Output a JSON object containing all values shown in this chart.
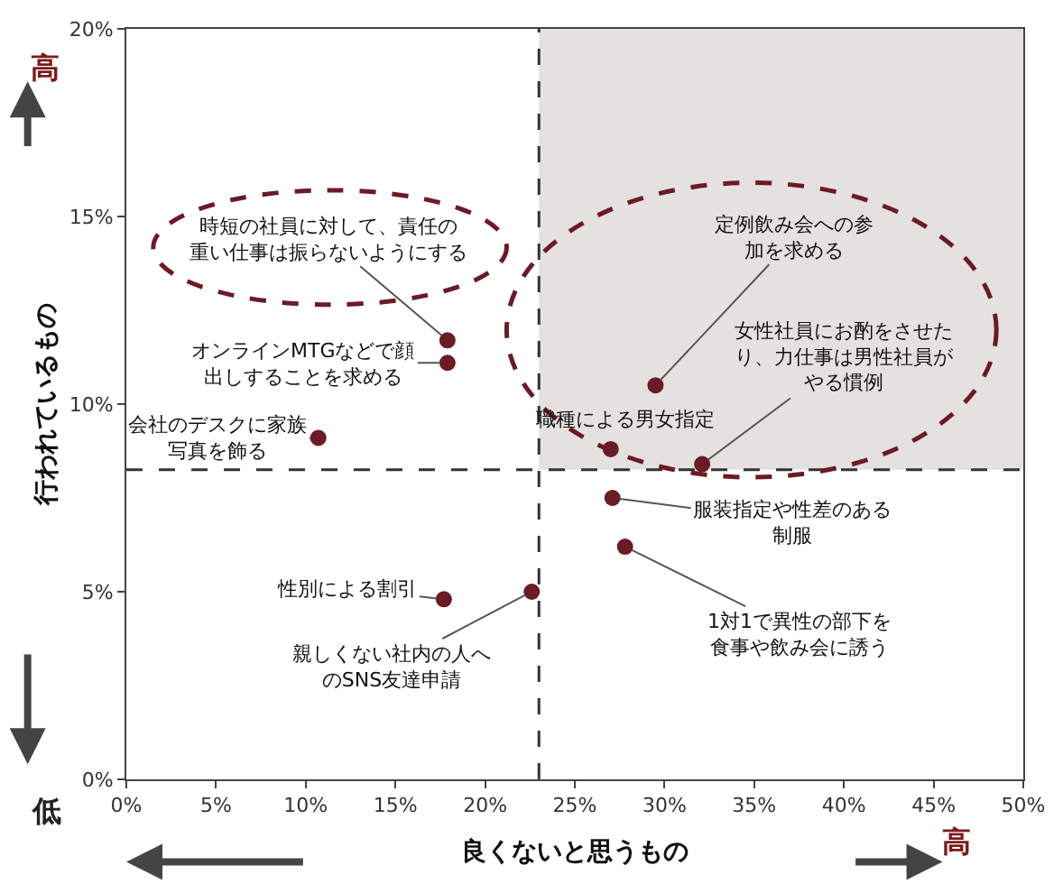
{
  "chart_data": {
    "type": "scatter",
    "xlabel": "良くないと思うもの",
    "ylabel": "行われているもの",
    "series": [
      {
        "color": "#6b1b24",
        "x": [
          17.9,
          17.9,
          10.7,
          17.7,
          22.6,
          29.5,
          27.0,
          32.1,
          27.1,
          27.8
        ],
        "values": [
          11.7,
          11.1,
          9.1,
          4.8,
          5.0,
          10.5,
          8.8,
          8.4,
          7.5,
          6.2
        ]
      }
    ],
    "annotations": [
      {
        "text": "時短の社員に対して、責任の重い仕事は振らないようにする",
        "x": 17.9,
        "y": 11.7
      },
      {
        "text": "オンラインMTGなどで顔出しすることを求める",
        "x": 17.9,
        "y": 11.1
      },
      {
        "text": "会社のデスクに家族写真を飾る",
        "x": 10.7,
        "y": 9.1
      },
      {
        "text": "性別による割引",
        "x": 17.7,
        "y": 4.8
      },
      {
        "text": "親しくない社内の人へのSNS友達申請",
        "x": 22.6,
        "y": 5.0
      },
      {
        "text": "定例飲み会への参加を求める",
        "x": 29.5,
        "y": 10.5
      },
      {
        "text": "職種による男女指定",
        "x": 27.0,
        "y": 8.8
      },
      {
        "text": "女性社員にお酌をさせたり、力仕事は男性社員がやる慣例",
        "x": 32.1,
        "y": 8.4
      },
      {
        "text": "服装指定や性差のある制服",
        "x": 27.1,
        "y": 7.5
      },
      {
        "text": "1対1で異性の部下を食事や飲み会に誘う",
        "x": 27.8,
        "y": 6.2
      },
      "高",
      "低",
      "高"
    ],
    "ref_lines": [
      {
        "axis": "x",
        "value": 23,
        "line_style": "dashed",
        "color": "#333333"
      },
      {
        "axis": "y",
        "value": 8.25,
        "line_style": "dashed",
        "color": "#333333"
      }
    ],
    "bands": [
      {
        "axis": "x",
        "from": 23,
        "to": 50,
        "color": "#e6e1e1"
      }
    ],
    "xlim": [
      0,
      50
    ],
    "ylim": [
      0,
      20
    ],
    "xticks": [
      {
        "value": 0,
        "label": "0%"
      },
      {
        "value": 5,
        "label": "5%"
      },
      {
        "value": 10,
        "label": "10%"
      },
      {
        "value": 15,
        "label": "15%"
      },
      {
        "value": 20,
        "label": "20%"
      },
      {
        "value": 25,
        "label": "25%"
      },
      {
        "value": 30,
        "label": "30%"
      },
      {
        "value": 35,
        "label": "35%"
      },
      {
        "value": 40,
        "label": "40%"
      },
      {
        "value": 45,
        "label": "45%"
      },
      {
        "value": 50,
        "label": "50%"
      }
    ],
    "yticks": [
      {
        "value": 0,
        "label": "0%"
      },
      {
        "value": 5,
        "label": "5%"
      },
      {
        "value": 10,
        "label": "10%"
      },
      {
        "value": 15,
        "label": "15%"
      },
      {
        "value": 20,
        "label": "20%"
      }
    ],
    "grid": false
  }
}
